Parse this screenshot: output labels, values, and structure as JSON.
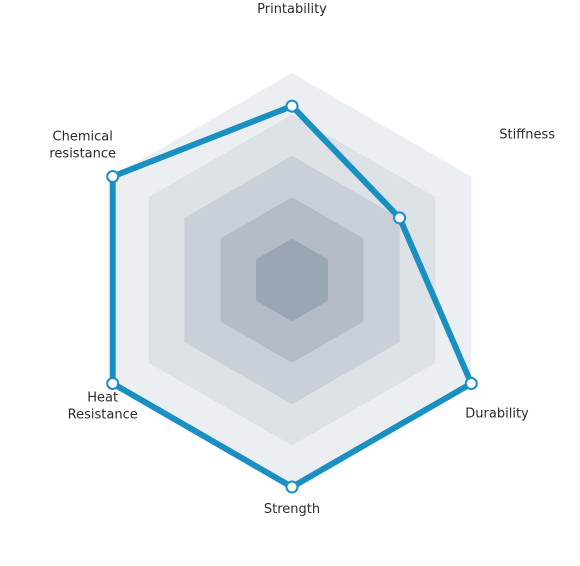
{
  "chart_data": {
    "type": "radar",
    "axes": [
      {
        "label": [
          "Printability"
        ]
      },
      {
        "label": [
          "Stiffness"
        ]
      },
      {
        "label": [
          "Durability"
        ]
      },
      {
        "label": [
          "Strength"
        ]
      },
      {
        "label": [
          "Heat",
          "Resistance"
        ]
      },
      {
        "label": [
          "Chemical",
          "resistance"
        ]
      }
    ],
    "values": [
      4.2,
      3.0,
      5.0,
      5.0,
      5.0,
      5.0
    ],
    "max": 5,
    "levels": 5,
    "colors": {
      "series": "#1a8fc1",
      "point_fill": "#ffffff",
      "rings": [
        "#eceff2",
        "#dde2e7",
        "#c9d0d9",
        "#b3bcc7",
        "#9aa6b3"
      ]
    }
  }
}
